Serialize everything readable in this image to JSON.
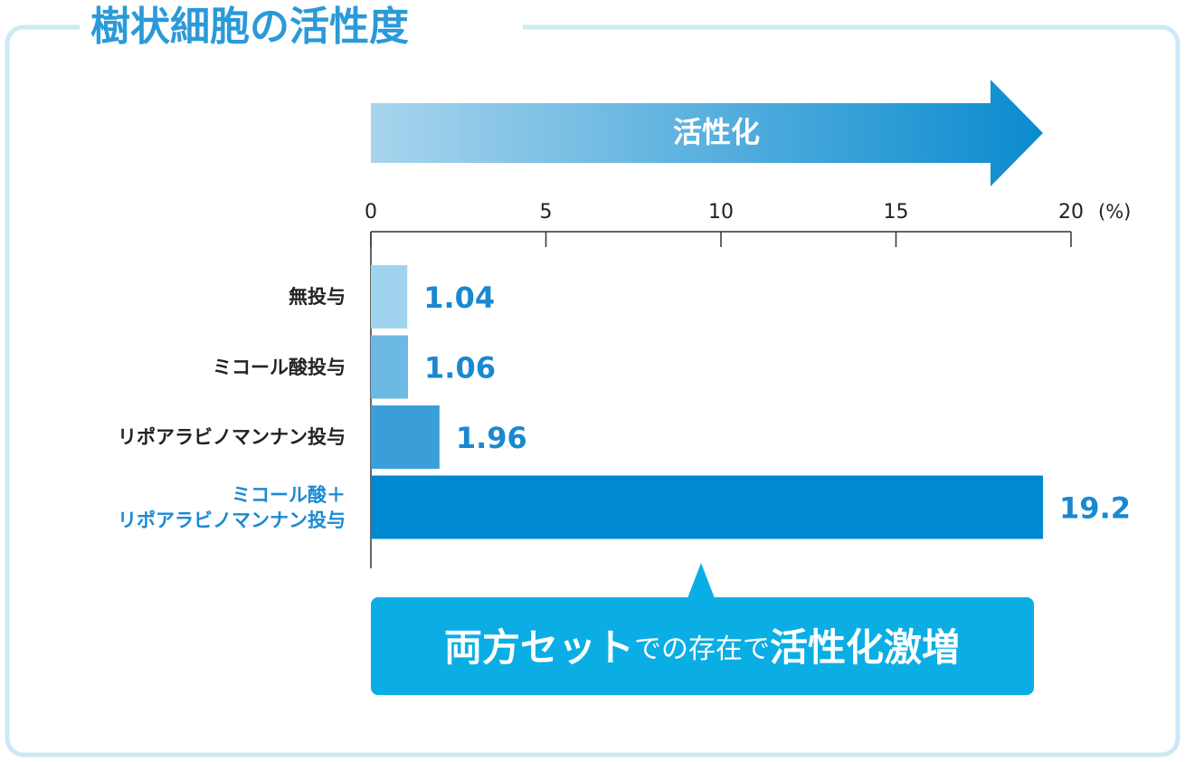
{
  "chart_data": {
    "type": "hbar",
    "title": "樹状細胞の活性度",
    "arrow_label": "活性化",
    "x_unit": "(%)",
    "categories": [
      "無投与",
      "ミコール酸投与",
      "リポアラビノマンナン投与",
      "ミコール酸＋\nリポアラビノマンナン投与"
    ],
    "category_colors": [
      "#222222",
      "#222222",
      "#222222",
      "#1a8ad4"
    ],
    "values": [
      1.04,
      1.06,
      1.96,
      19.2
    ],
    "colors": [
      "#a0d4ee",
      "#6cb9e3",
      "#3a9fd9",
      "#0088d0"
    ],
    "value_label_color": "#1a88d0",
    "xlim": [
      0,
      20
    ],
    "xticks": [
      0,
      5,
      10,
      15,
      20
    ],
    "callout": [
      "両方セット",
      "での存在で",
      "活性化激増"
    ]
  }
}
